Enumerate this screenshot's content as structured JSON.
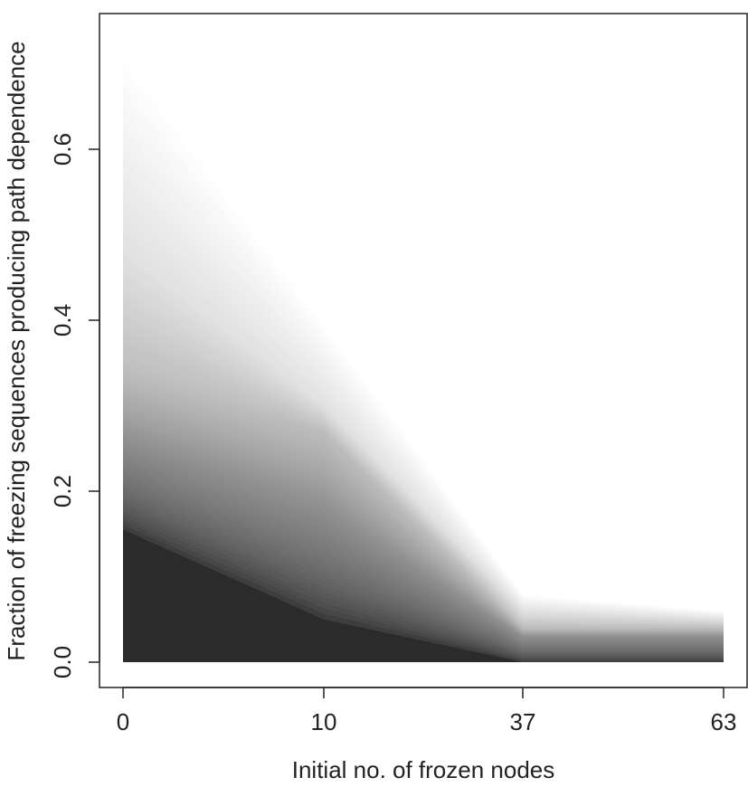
{
  "chart_data": {
    "type": "area",
    "title": "",
    "xlabel": "Initial no. of frozen nodes",
    "ylabel": "Fraction of freezing sequences producing path dependence",
    "categories": [
      "0",
      "10",
      "37",
      "63"
    ],
    "ylim": [
      0,
      0.75
    ],
    "yticks": [
      "0.0",
      "0.2",
      "0.4",
      "0.6"
    ],
    "ytick_values": [
      0,
      0.2,
      0.4,
      0.6
    ],
    "grid": false,
    "legend": "none",
    "fill_color_darkest": "#2b2b2b",
    "fill_color_lightest": "#ffffff",
    "series_top_bound": [
      0.72,
      0.4,
      0.08,
      0.06
    ],
    "series_upper_mid": [
      0.48,
      0.3,
      0.06,
      0.05
    ],
    "series_mid": [
      0.34,
      0.27,
      0.04,
      0.04
    ],
    "series_lower_mid": [
      0.26,
      0.18,
      0.03,
      0.03
    ],
    "series_bottom_bound": [
      0.155,
      0.05,
      0.0,
      0.0
    ]
  }
}
